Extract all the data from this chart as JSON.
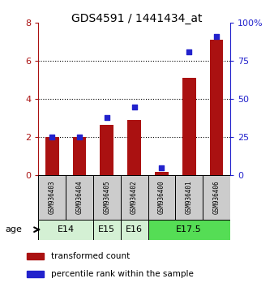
{
  "title": "GDS4591 / 1441434_at",
  "samples": [
    "GSM936403",
    "GSM936404",
    "GSM936405",
    "GSM936402",
    "GSM936400",
    "GSM936401",
    "GSM936406"
  ],
  "red_values": [
    2.0,
    2.0,
    2.65,
    2.9,
    0.15,
    5.1,
    7.1
  ],
  "blue_values": [
    25,
    25,
    38,
    45,
    5,
    81,
    91
  ],
  "age_groups": [
    {
      "label": "E14",
      "start": 0,
      "end": 2,
      "color": "#d4f0d4"
    },
    {
      "label": "E15",
      "start": 2,
      "end": 3,
      "color": "#d4f0d4"
    },
    {
      "label": "E16",
      "start": 3,
      "end": 4,
      "color": "#d4f0d4"
    },
    {
      "label": "E17.5",
      "start": 4,
      "end": 7,
      "color": "#55dd55"
    }
  ],
  "ylim_left": [
    0,
    8
  ],
  "ylim_right": [
    0,
    100
  ],
  "yticks_left": [
    0,
    2,
    4,
    6,
    8
  ],
  "yticks_right": [
    0,
    25,
    50,
    75,
    100
  ],
  "ytick_labels_left": [
    "0",
    "2",
    "4",
    "6",
    "8"
  ],
  "ytick_labels_right": [
    "0",
    "25",
    "50",
    "75",
    "100%"
  ],
  "bar_color": "#aa1111",
  "dot_color": "#2222cc",
  "age_label": "age",
  "legend_red": "transformed count",
  "legend_blue": "percentile rank within the sample",
  "sample_bg_color": "#cccccc",
  "bar_width": 0.5,
  "dot_size": 22
}
